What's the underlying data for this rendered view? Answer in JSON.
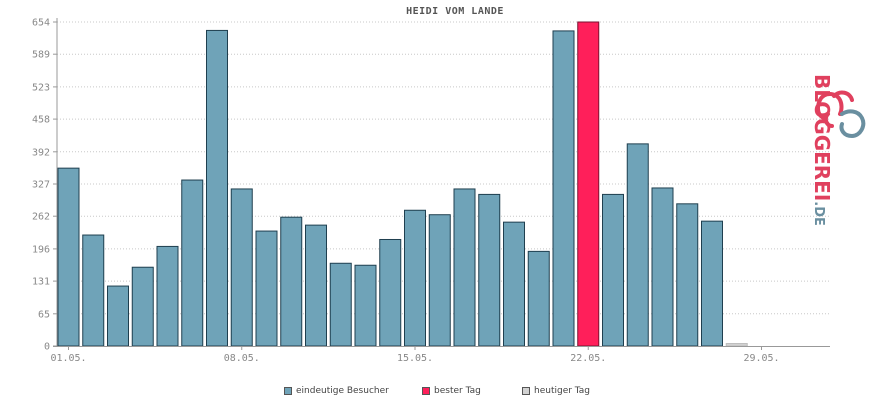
{
  "chart_data": {
    "type": "bar",
    "title": "HEIDI VOM LANDE",
    "xlabel": "",
    "ylabel": "",
    "ylim": [
      0,
      654
    ],
    "yticks": [
      0,
      65,
      131,
      196,
      262,
      327,
      392,
      458,
      523,
      589,
      654
    ],
    "xtick_labels": [
      "01.05.",
      "08.05.",
      "15.05.",
      "22.05.",
      "29.05."
    ],
    "xtick_days": [
      1,
      8,
      15,
      22,
      29
    ],
    "days": [
      1,
      2,
      3,
      4,
      5,
      6,
      7,
      8,
      9,
      10,
      11,
      12,
      13,
      14,
      15,
      16,
      17,
      18,
      19,
      20,
      21,
      22,
      23,
      24,
      25,
      26,
      27,
      28,
      29,
      30,
      31
    ],
    "values": [
      359,
      224,
      121,
      159,
      201,
      335,
      637,
      317,
      232,
      260,
      244,
      167,
      163,
      215,
      274,
      265,
      317,
      306,
      250,
      191,
      636,
      654,
      306,
      408,
      319,
      287,
      252,
      5,
      0,
      0,
      0
    ],
    "best_day_index": 21,
    "today_index": 27,
    "colors": {
      "visitors": "#6fa3b8",
      "best": "#ff1f5a",
      "today": "#d2d2d2",
      "bar_stroke": "#1f3f4f",
      "grid": "#c8c8c8",
      "axis": "#999999",
      "tick_text": "#888888"
    },
    "legend": [
      {
        "label": "eindeutige Besucher",
        "color": "#6fa3b8"
      },
      {
        "label": "bester Tag",
        "color": "#ff1f5a"
      },
      {
        "label": "heutiger Tag",
        "color": "#d2d2d2"
      }
    ],
    "grid": true
  },
  "logo": {
    "text_main": "BLOGGEREI",
    "text_suffix": ".DE",
    "color_main": "#e0405e",
    "color_suffix": "#6a8fa0",
    "icon": "bloggerei-logo-icon"
  }
}
